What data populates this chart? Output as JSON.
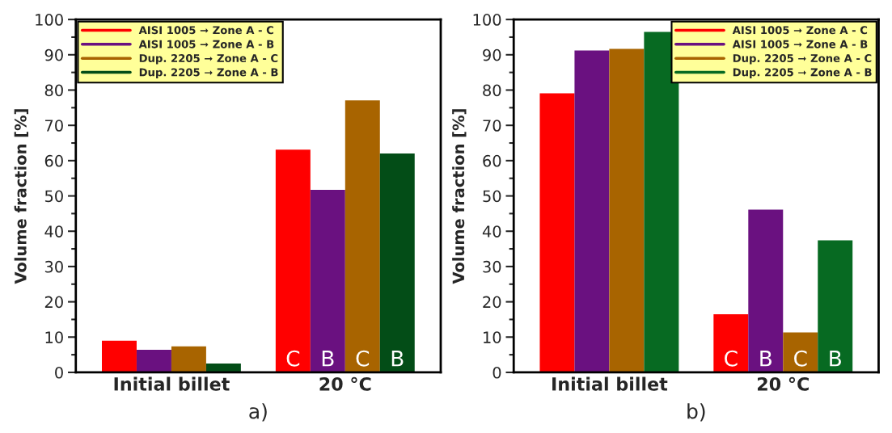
{
  "chart_data": [
    {
      "type": "bar",
      "xlabel": "a)",
      "ylabel": "Volume fraction [%]",
      "categories": [
        "Initial billet",
        "20 °C"
      ],
      "ylim": [
        0,
        100
      ],
      "yticks": [
        0,
        {
          "value": 5,
          "label": null
        },
        10,
        {
          "value": 15,
          "label": null
        },
        20,
        {
          "value": 25,
          "label": null
        },
        30,
        {
          "value": 35,
          "label": null
        },
        40,
        {
          "value": 45,
          "label": null
        },
        50,
        {
          "value": 55,
          "label": null
        },
        60,
        {
          "value": 65,
          "label": null
        },
        70,
        {
          "value": 75,
          "label": null
        },
        80,
        {
          "value": 85,
          "label": null
        },
        90,
        {
          "value": 95,
          "label": null
        },
        100
      ],
      "legend": "top left",
      "grid": false,
      "series": [
        {
          "name": "AISI 1005 ➞ Zone A - C",
          "color": "#ff0000",
          "values": [
            9.0,
            63.1
          ],
          "value_labels": [
            null,
            "C"
          ]
        },
        {
          "name": "AISI 1005 ➞ Zone A - B",
          "color": "#6a1180",
          "values": [
            6.4,
            51.7
          ],
          "value_labels": [
            null,
            "B"
          ]
        },
        {
          "name": "Dup. 2205 ➞ Zone A - C",
          "color": "#a86400",
          "values": [
            7.4,
            77.1
          ],
          "value_labels": [
            null,
            "C"
          ]
        },
        {
          "name": "Dup. 2205 ➞ Zone A - B",
          "color": "#034d17",
          "values": [
            2.5,
            62.0
          ],
          "value_labels": [
            null,
            "B"
          ]
        }
      ]
    },
    {
      "type": "bar",
      "xlabel": "b)",
      "ylabel": "Volume fraction [%]",
      "categories": [
        "Initial billet",
        "20 °C"
      ],
      "ylim": [
        0,
        100
      ],
      "yticks": [
        0,
        {
          "value": 5,
          "label": null
        },
        10,
        {
          "value": 15,
          "label": null
        },
        20,
        {
          "value": 25,
          "label": null
        },
        30,
        {
          "value": 35,
          "label": null
        },
        40,
        {
          "value": 45,
          "label": null
        },
        50,
        {
          "value": 55,
          "label": null
        },
        60,
        {
          "value": 65,
          "label": null
        },
        70,
        {
          "value": 75,
          "label": null
        },
        80,
        {
          "value": 85,
          "label": null
        },
        90,
        {
          "value": 95,
          "label": null
        },
        100
      ],
      "legend": "top right",
      "grid": false,
      "series": [
        {
          "name": "AISI 1005 ➞ Zone A - C",
          "color": "#ff0000",
          "values": [
            79.1,
            16.5
          ],
          "value_labels": [
            null,
            "C"
          ]
        },
        {
          "name": "AISI 1005 ➞ Zone A - B",
          "color": "#6a1180",
          "values": [
            91.2,
            46.1
          ],
          "value_labels": [
            null,
            "B"
          ]
        },
        {
          "name": "Dup. 2205 ➞ Zone A - C",
          "color": "#a86400",
          "values": [
            91.7,
            11.3
          ],
          "value_labels": [
            null,
            "C"
          ]
        },
        {
          "name": "Dup. 2205 ➞ Zone A - B",
          "color": "#076a22",
          "values": [
            96.5,
            37.4
          ],
          "value_labels": [
            null,
            "B"
          ]
        }
      ]
    }
  ]
}
